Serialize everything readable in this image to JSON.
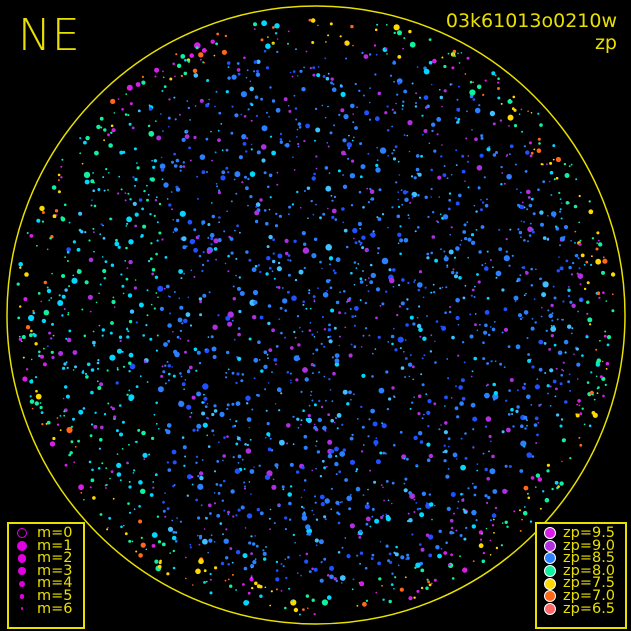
{
  "chart_data": {
    "type": "scatter",
    "title": "NE",
    "frame_id": "03k61013o0210w",
    "color_quantity": "zp",
    "grid": false,
    "horizon_circle_color": "#e8e000",
    "size_legend": {
      "position": "bottom-left",
      "entries": [
        "m=0",
        "m=1",
        "m=2",
        "m=3",
        "m=4",
        "m=5",
        "m=6"
      ]
    },
    "color_legend": {
      "position": "bottom-right",
      "entries": [
        {
          "label": "zp=9.5",
          "color": "#d81ee8"
        },
        {
          "label": "zp=9.0",
          "color": "#b030e0"
        },
        {
          "label": "zp=8.5",
          "color": "#2a80ff"
        },
        {
          "label": "zp=8.0",
          "color": "#10f0a0"
        },
        {
          "label": "zp=7.5",
          "color": "#ffd800"
        },
        {
          "label": "zp=7.0",
          "color": "#ff6818"
        },
        {
          "label": "zp=6.5",
          "color": "#ff6868"
        }
      ]
    },
    "marker_color": "#e000e0"
  }
}
